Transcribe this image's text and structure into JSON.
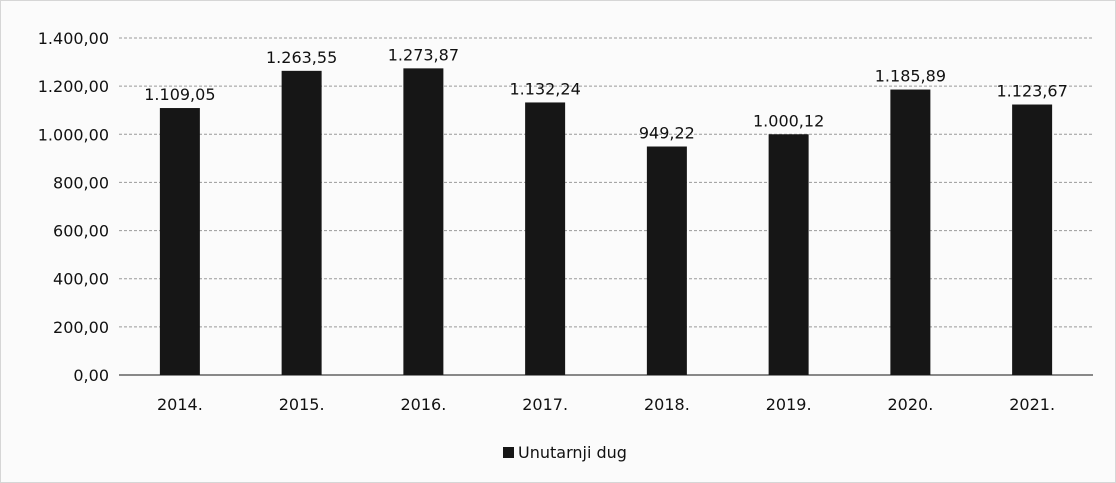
{
  "chart_data": {
    "type": "bar",
    "categories": [
      "2014.",
      "2015.",
      "2016.",
      "2017.",
      "2018.",
      "2019.",
      "2020.",
      "2021."
    ],
    "series": [
      {
        "name": "Unutarnji dug",
        "values": [
          1109.05,
          1263.55,
          1273.87,
          1132.24,
          949.22,
          1000.12,
          1185.89,
          1123.67
        ],
        "data_labels": [
          "1.109,05",
          "1.263,55",
          "1.273,87",
          "1.132,24",
          "949,22",
          "1.000,12",
          "1.185,89",
          "1.123,67"
        ]
      }
    ],
    "y_ticks": [
      0,
      200,
      400,
      600,
      800,
      1000,
      1200,
      1400
    ],
    "y_tick_labels": [
      "0,00",
      "200,00",
      "400,00",
      "600,00",
      "800,00",
      "1.000,00",
      "1.200,00",
      "1.400,00"
    ],
    "ylim": [
      0,
      1400
    ],
    "grid": true,
    "legend_position": "bottom",
    "bar_color": "#161616"
  }
}
